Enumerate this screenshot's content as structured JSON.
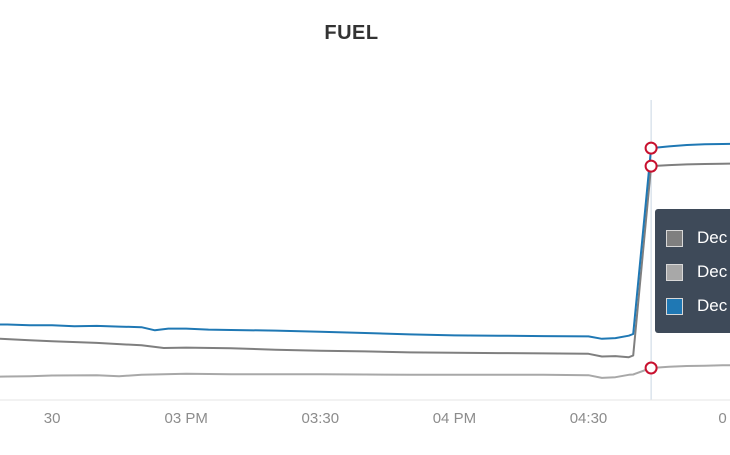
{
  "chart_data": {
    "type": "line",
    "title": "FUEL",
    "xlabel": "",
    "ylabel": "",
    "x_tick_labels": [
      "30",
      "03 PM",
      "03:30",
      "04 PM",
      "04:30",
      "0"
    ],
    "x_tick_values": [
      870,
      900,
      930,
      960,
      990,
      1020
    ],
    "xlim": [
      855,
      1025
    ],
    "ylim": [
      0,
      100
    ],
    "grid": false,
    "legend": "none",
    "series": [
      {
        "color": "#1f78b4",
        "points": [
          [
            855,
            22.2
          ],
          [
            860,
            22.2
          ],
          [
            865,
            22.0
          ],
          [
            870,
            22.0
          ],
          [
            875,
            21.7
          ],
          [
            880,
            21.8
          ],
          [
            885,
            21.6
          ],
          [
            890,
            21.4
          ],
          [
            893,
            20.5
          ],
          [
            896,
            21.0
          ],
          [
            900,
            21.0
          ],
          [
            905,
            20.7
          ],
          [
            910,
            20.6
          ],
          [
            920,
            20.4
          ],
          [
            930,
            20.1
          ],
          [
            940,
            19.7
          ],
          [
            950,
            19.3
          ],
          [
            960,
            19.0
          ],
          [
            970,
            18.9
          ],
          [
            980,
            18.8
          ],
          [
            990,
            18.7
          ],
          [
            993,
            18.0
          ],
          [
            996,
            18.2
          ],
          [
            999,
            18.9
          ],
          [
            1000,
            19.4
          ],
          [
            1004,
            74.1
          ],
          [
            1008,
            74.6
          ],
          [
            1012,
            75.0
          ],
          [
            1016,
            75.2
          ],
          [
            1020,
            75.3
          ],
          [
            1025,
            75.4
          ]
        ]
      },
      {
        "color": "#7f7f7f",
        "points": [
          [
            855,
            18.2
          ],
          [
            860,
            17.9
          ],
          [
            865,
            17.6
          ],
          [
            870,
            17.3
          ],
          [
            880,
            16.8
          ],
          [
            890,
            16.1
          ],
          [
            895,
            15.3
          ],
          [
            900,
            15.4
          ],
          [
            910,
            15.2
          ],
          [
            920,
            14.8
          ],
          [
            930,
            14.5
          ],
          [
            940,
            14.3
          ],
          [
            950,
            14.0
          ],
          [
            960,
            13.9
          ],
          [
            970,
            13.8
          ],
          [
            980,
            13.7
          ],
          [
            990,
            13.6
          ],
          [
            993,
            12.8
          ],
          [
            996,
            12.9
          ],
          [
            999,
            12.6
          ],
          [
            1000,
            13.1
          ],
          [
            1004,
            68.8
          ],
          [
            1008,
            69.1
          ],
          [
            1012,
            69.3
          ],
          [
            1016,
            69.4
          ],
          [
            1020,
            69.5
          ],
          [
            1025,
            69.6
          ]
        ]
      },
      {
        "color": "#a8a8a8",
        "points": [
          [
            855,
            6.8
          ],
          [
            860,
            6.9
          ],
          [
            865,
            7.0
          ],
          [
            870,
            7.2
          ],
          [
            880,
            7.3
          ],
          [
            885,
            7.0
          ],
          [
            890,
            7.4
          ],
          [
            895,
            7.6
          ],
          [
            900,
            7.7
          ],
          [
            910,
            7.6
          ],
          [
            920,
            7.6
          ],
          [
            930,
            7.6
          ],
          [
            940,
            7.5
          ],
          [
            950,
            7.4
          ],
          [
            960,
            7.4
          ],
          [
            970,
            7.4
          ],
          [
            980,
            7.4
          ],
          [
            990,
            7.3
          ],
          [
            993,
            6.5
          ],
          [
            996,
            6.7
          ],
          [
            999,
            7.4
          ],
          [
            1000,
            7.5
          ],
          [
            1004,
            9.4
          ],
          [
            1008,
            9.8
          ],
          [
            1012,
            10.0
          ],
          [
            1016,
            10.1
          ],
          [
            1020,
            10.2
          ],
          [
            1025,
            10.3
          ]
        ]
      }
    ],
    "highlight_x": 1004,
    "highlight_markers": [
      74.1,
      68.8,
      9.4
    ],
    "marker_color": "#c8102e"
  },
  "tooltip": {
    "items": [
      {
        "color": "#7f7f7f",
        "label": "Dec"
      },
      {
        "color": "#a8a8a8",
        "label": "Dec"
      },
      {
        "color": "#1f78b4",
        "label": "Dec"
      }
    ]
  }
}
